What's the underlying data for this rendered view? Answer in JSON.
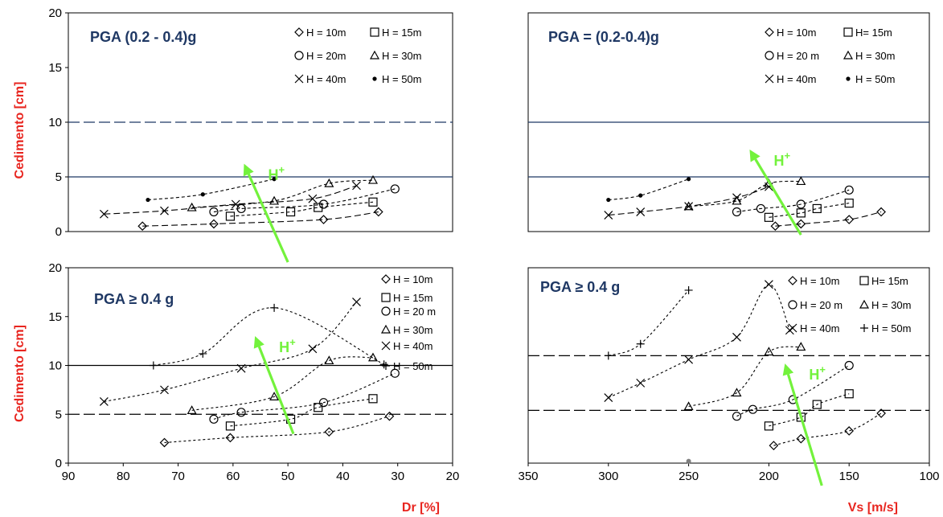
{
  "chart_data": [
    {
      "type": "scatter",
      "title": "PGA (0.2 - 0.4)g",
      "ylabel": "Cedimento [cm]",
      "xlabel": "",
      "xlim": [
        90,
        20
      ],
      "ylim": [
        0,
        20
      ],
      "xticks": [],
      "yticks": [
        "0",
        "5",
        "10",
        "15",
        "20"
      ],
      "ref_lines": [
        {
          "y": 10,
          "style": "dashed",
          "color": "#1f3864"
        },
        {
          "y": 5,
          "style": "solid",
          "color": "#1f3864"
        }
      ],
      "arrow": {
        "from": [
          50,
          -2.8
        ],
        "to": [
          58,
          6.2
        ],
        "label": "H+"
      },
      "series": [
        {
          "name": "H = 10m",
          "marker": "diamond",
          "points": [
            [
              76.5,
              0.5
            ],
            [
              63.5,
              0.7
            ],
            [
              43.5,
              1.1
            ],
            [
              33.5,
              1.8
            ]
          ]
        },
        {
          "name": "H= 15m",
          "marker": "square",
          "points": [
            [
              60.5,
              1.4
            ],
            [
              49.5,
              1.8
            ],
            [
              44.5,
              2.2
            ],
            [
              34.5,
              2.7
            ]
          ]
        },
        {
          "name": "H = 20m",
          "marker": "circle",
          "points": [
            [
              63.5,
              1.8
            ],
            [
              58.5,
              2.1
            ],
            [
              43.5,
              2.5
            ],
            [
              30.5,
              3.9
            ]
          ]
        },
        {
          "name": "H = 30m",
          "marker": "triangle",
          "points": [
            [
              67.5,
              2.2
            ],
            [
              52.5,
              2.8
            ],
            [
              42.5,
              4.4
            ],
            [
              34.5,
              4.7
            ]
          ]
        },
        {
          "name": "H = 40m",
          "marker": "x",
          "points": [
            [
              83.5,
              1.6
            ],
            [
              72.5,
              1.9
            ],
            [
              59.5,
              2.5
            ],
            [
              45.5,
              3.0
            ],
            [
              37.5,
              4.2
            ]
          ]
        },
        {
          "name": "H = 50m",
          "marker": "dot",
          "points": [
            [
              75.5,
              2.9
            ],
            [
              65.5,
              3.4
            ],
            [
              52.5,
              4.8
            ]
          ]
        }
      ]
    },
    {
      "type": "scatter",
      "title": "PGA = (0.2-0.4)g",
      "ylabel": "",
      "xlabel": "",
      "xlim": [
        350,
        100
      ],
      "ylim": [
        0,
        20
      ],
      "xticks": [],
      "yticks": [],
      "ref_lines": [
        {
          "y": 10,
          "style": "solid",
          "color": "#1f3864"
        },
        {
          "y": 5,
          "style": "solid",
          "color": "#1f3864"
        }
      ],
      "arrow": {
        "from": [
          180,
          -0.3
        ],
        "to": [
          212,
          7.5
        ],
        "label": "H+"
      },
      "series": [
        {
          "name": "H = 10m",
          "marker": "diamond",
          "points": [
            [
              196,
              0.5
            ],
            [
              180,
              0.7
            ],
            [
              150,
              1.1
            ],
            [
              130,
              1.8
            ]
          ]
        },
        {
          "name": "H= 15m",
          "marker": "square",
          "points": [
            [
              200,
              1.3
            ],
            [
              180,
              1.7
            ],
            [
              170,
              2.1
            ],
            [
              150,
              2.6
            ]
          ]
        },
        {
          "name": "H = 20 m",
          "marker": "circle",
          "points": [
            [
              220,
              1.8
            ],
            [
              205,
              2.1
            ],
            [
              180,
              2.5
            ],
            [
              150,
              3.8
            ]
          ]
        },
        {
          "name": "H = 30m",
          "marker": "triangle",
          "points": [
            [
              250,
              2.3
            ],
            [
              220,
              2.8
            ],
            [
              200,
              4.4
            ],
            [
              180,
              4.6
            ]
          ]
        },
        {
          "name": "H = 40m",
          "marker": "x",
          "points": [
            [
              300,
              1.5
            ],
            [
              280,
              1.8
            ],
            [
              250,
              2.3
            ],
            [
              220,
              3.1
            ],
            [
              200,
              4.1
            ]
          ]
        },
        {
          "name": "H = 50m",
          "marker": "dot",
          "points": [
            [
              300,
              2.9
            ],
            [
              280,
              3.3
            ],
            [
              250,
              4.8
            ]
          ]
        }
      ]
    },
    {
      "type": "scatter",
      "title": "PGA ≥ 0.4 g",
      "ylabel": "Cedimento  [cm]",
      "xlabel": "Dr [%]",
      "xlim": [
        90,
        20
      ],
      "ylim": [
        0,
        20
      ],
      "xticks": [
        "90",
        "80",
        "70",
        "60",
        "50",
        "40",
        "30",
        "20"
      ],
      "yticks": [
        "0",
        "5",
        "10",
        "15",
        "20"
      ],
      "ref_lines": [
        {
          "y": 10,
          "style": "solid",
          "color": "#000000"
        },
        {
          "y": 5,
          "style": "dashed",
          "color": "#000000"
        }
      ],
      "arrow": {
        "from": [
          49,
          3.0
        ],
        "to": [
          56,
          13.0
        ],
        "label": "H+"
      },
      "series": [
        {
          "name": "H = 10m",
          "marker": "diamond",
          "points": [
            [
              72.5,
              2.1
            ],
            [
              60.5,
              2.6
            ],
            [
              42.5,
              3.2
            ],
            [
              31.5,
              4.8
            ]
          ]
        },
        {
          "name": "H = 15m",
          "marker": "square",
          "points": [
            [
              60.5,
              3.8
            ],
            [
              49.5,
              4.5
            ],
            [
              44.5,
              5.7
            ],
            [
              34.5,
              6.6
            ]
          ]
        },
        {
          "name": "H = 20 m",
          "marker": "circle",
          "points": [
            [
              63.5,
              4.5
            ],
            [
              58.5,
              5.2
            ],
            [
              43.5,
              6.2
            ],
            [
              30.5,
              9.2
            ]
          ]
        },
        {
          "name": "H = 30m",
          "marker": "triangle",
          "points": [
            [
              67.5,
              5.4
            ],
            [
              52.5,
              6.8
            ],
            [
              42.5,
              10.5
            ],
            [
              34.5,
              10.8
            ]
          ]
        },
        {
          "name": "H = 40m",
          "marker": "x",
          "points": [
            [
              83.5,
              6.3
            ],
            [
              72.5,
              7.5
            ],
            [
              58.5,
              9.7
            ],
            [
              45.5,
              11.7
            ],
            [
              37.5,
              16.5
            ]
          ]
        },
        {
          "name": "H = 50m",
          "marker": "plus",
          "points": [
            [
              74.5,
              10.0
            ],
            [
              65.5,
              11.2
            ],
            [
              52.5,
              15.9
            ],
            [
              32.5,
              10.1
            ]
          ]
        }
      ]
    },
    {
      "type": "scatter",
      "title": "PGA ≥ 0.4 g",
      "ylabel": "",
      "xlabel": "Vs [m/s]",
      "xlim": [
        350,
        100
      ],
      "ylim": [
        0,
        20
      ],
      "xticks": [
        "350",
        "300",
        "250",
        "200",
        "150",
        "100"
      ],
      "yticks": [],
      "ref_lines": [
        {
          "y": 11,
          "style": "dashed",
          "color": "#000000"
        },
        {
          "y": 5.4,
          "style": "dashed",
          "color": "#000000"
        }
      ],
      "arrow": {
        "from": [
          167,
          -2.3
        ],
        "to": [
          190,
          10.2
        ],
        "label": "H+"
      },
      "series": [
        {
          "name": "H = 10m",
          "marker": "diamond",
          "points": [
            [
              197,
              1.8
            ],
            [
              180,
              2.5
            ],
            [
              150,
              3.3
            ],
            [
              130,
              5.1
            ]
          ]
        },
        {
          "name": "H= 15m",
          "marker": "square",
          "points": [
            [
              200,
              3.8
            ],
            [
              180,
              4.7
            ],
            [
              170,
              6.0
            ],
            [
              150,
              7.1
            ]
          ]
        },
        {
          "name": "H = 20 m",
          "marker": "circle",
          "points": [
            [
              220,
              4.8
            ],
            [
              210,
              5.5
            ],
            [
              185,
              6.5
            ],
            [
              150,
              10.0
            ]
          ]
        },
        {
          "name": "H = 30m",
          "marker": "triangle",
          "points": [
            [
              250,
              5.8
            ],
            [
              220,
              7.2
            ],
            [
              200,
              11.4
            ],
            [
              180,
              11.9
            ]
          ]
        },
        {
          "name": "H = 40m",
          "marker": "x",
          "points": [
            [
              300,
              6.7
            ],
            [
              280,
              8.2
            ],
            [
              250,
              10.6
            ],
            [
              220,
              12.9
            ],
            [
              200,
              18.3
            ],
            [
              187,
              13.6
            ]
          ]
        },
        {
          "name": "H = 50m",
          "marker": "plus",
          "points": [
            [
              300,
              11.0
            ],
            [
              280,
              12.2
            ],
            [
              250,
              17.7
            ]
          ]
        }
      ],
      "extra_points": [
        {
          "x": 250,
          "y": 0.2,
          "marker": "dot-grey"
        }
      ]
    }
  ],
  "panels_ui": [
    {
      "title": "PGA (0.2 - 0.4)g",
      "ylabel": "Cedimento [cm]",
      "legend": [
        "H = 10m",
        "H = 15m",
        "H = 20m",
        "H = 30m",
        "H = 40m",
        "H = 50m"
      ]
    },
    {
      "title": "PGA = (0.2-0.4)g",
      "legend": [
        "H = 10m",
        "H= 15m",
        "H = 20 m",
        "H = 30m",
        "H = 40m",
        "H = 50m"
      ]
    },
    {
      "title": "PGA ≥ 0.4 g",
      "ylabel": "Cedimento  [cm]",
      "xlabel": "Dr [%]",
      "legend": [
        "H = 10m",
        "H = 15m",
        "H = 20 m",
        "H = 30m",
        "H = 40m",
        "H = 50m"
      ]
    },
    {
      "title": "PGA ≥ 0.4 g",
      "xlabel": "Vs [m/s]",
      "legend": [
        "H = 10m",
        "H= 15m",
        "H = 20 m",
        "H = 30m",
        "H = 40m",
        "H = 50m"
      ]
    }
  ],
  "arrow_label": "H",
  "arrow_label_sup": "+",
  "colors": {
    "arrow": "#73f23c",
    "axis_label": "#e8251f",
    "title": "#1f3864",
    "ref_line_blue": "#1f3864"
  }
}
